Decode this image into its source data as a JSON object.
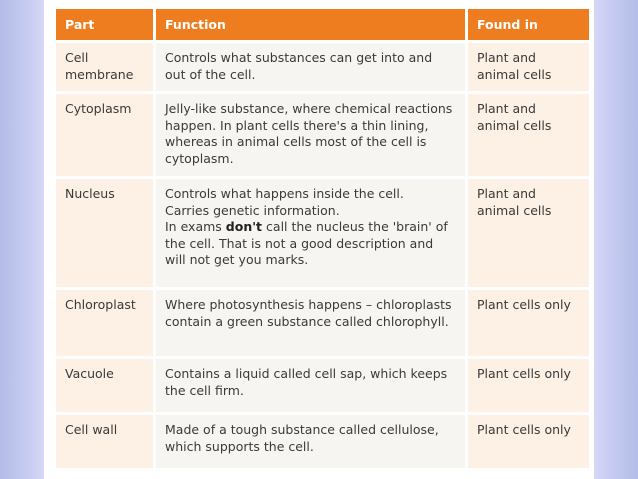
{
  "table": {
    "headers": [
      "Part",
      "Function",
      "Found in"
    ],
    "rows": [
      {
        "part": "Cell membrane",
        "function": [
          "Controls what substances can get into and out of the cell."
        ],
        "found_in": "Plant and animal cells"
      },
      {
        "part": "Cytoplasm",
        "function": [
          "Jelly-like substance, where chemical reactions happen. In plant cells there's a thin lining, whereas in animal cells most of the cell is cytoplasm."
        ],
        "found_in": "Plant and animal cells"
      },
      {
        "part": "Nucleus",
        "function": [
          "Controls what happens inside the cell.",
          "Carries genetic information.",
          "In exams",
          "don't",
          "call the nucleus the 'brain' of the cell. That is not a good description and will not get you marks."
        ],
        "found_in": "Plant and animal cells"
      },
      {
        "part": "Chloroplast",
        "function": [
          "Where photosynthesis happens – chloroplasts contain a green substance called chlorophyll."
        ],
        "found_in": "Plant cells only"
      },
      {
        "part": "Vacuole",
        "function": [
          "Contains a liquid called cell sap, which keeps the cell firm."
        ],
        "found_in": "Plant cells only"
      },
      {
        "part": "Cell wall",
        "function": [
          "Made of a tough substance called cellulose, which supports the cell."
        ],
        "found_in": "Plant cells only"
      }
    ]
  }
}
